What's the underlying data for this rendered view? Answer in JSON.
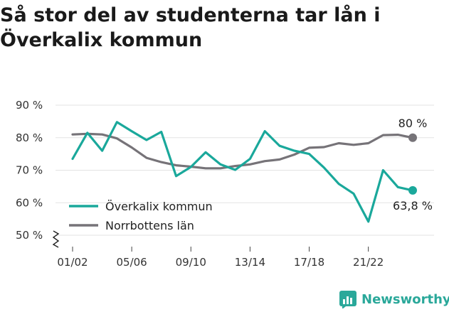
{
  "title": "Så stor del av studenterna tar lån i Överkalix kommun",
  "brand": {
    "name": "Newsworthy",
    "logo_icon": "newsworthy-logo-icon",
    "color": "#2aa89a"
  },
  "chart_data": {
    "type": "line",
    "title": "Så stor del av studenterna tar lån i Överkalix kommun",
    "xlabel": "",
    "ylabel": "",
    "ylim": [
      50,
      90
    ],
    "y_ticks": [
      {
        "value": 50,
        "label": "50 %"
      },
      {
        "value": 60,
        "label": "60 %"
      },
      {
        "value": 70,
        "label": "70 %"
      },
      {
        "value": 80,
        "label": "80 %"
      },
      {
        "value": 90,
        "label": "90 %"
      }
    ],
    "x_tick_labels": [
      "01/02",
      "05/06",
      "09/10",
      "13/14",
      "17/18",
      "21/22"
    ],
    "x": [
      "01/02",
      "02/03",
      "03/04",
      "04/05",
      "05/06",
      "06/07",
      "07/08",
      "08/09",
      "09/10",
      "10/11",
      "11/12",
      "12/13",
      "13/14",
      "14/15",
      "15/16",
      "16/17",
      "17/18",
      "18/19",
      "19/20",
      "20/21",
      "21/22",
      "22/23",
      "23/24",
      "24/25"
    ],
    "grid": true,
    "axis_break": true,
    "legend_position": "bottom-left",
    "series": [
      {
        "name": "Överkalix kommun",
        "color": "#1aa89b",
        "end_label": "63,8 %",
        "values": [
          73.5,
          81.5,
          76.0,
          84.8,
          82.0,
          79.3,
          81.8,
          68.2,
          71.0,
          75.5,
          71.8,
          70.1,
          73.5,
          82.0,
          77.5,
          76.0,
          75.0,
          70.8,
          65.8,
          62.8,
          54.2,
          70.0,
          64.8,
          63.8
        ]
      },
      {
        "name": "Norrbottens län",
        "color": "#767378",
        "end_label": "80 %",
        "values": [
          81.0,
          81.2,
          81.0,
          79.8,
          77.0,
          73.8,
          72.5,
          71.5,
          71.1,
          70.6,
          70.6,
          71.3,
          71.8,
          72.8,
          73.3,
          74.8,
          76.9,
          77.1,
          78.3,
          77.8,
          78.3,
          80.8,
          80.9,
          80.0
        ]
      }
    ]
  }
}
